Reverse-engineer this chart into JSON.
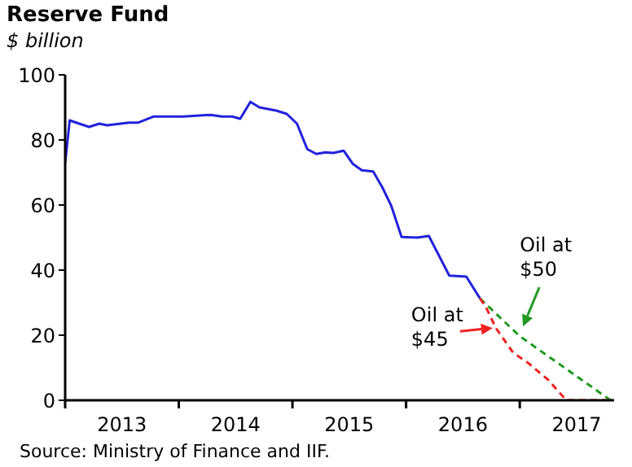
{
  "chart_data": {
    "type": "line",
    "title": "Reserve Fund",
    "subtitle": "$ billion",
    "xlim": [
      2013,
      2017.83
    ],
    "xticks": [
      {
        "value": 2013,
        "label": null
      },
      {
        "value": 2013.5,
        "label": "2013"
      },
      {
        "value": 2014,
        "label": null
      },
      {
        "value": 2014.5,
        "label": "2014"
      },
      {
        "value": 2015,
        "label": null
      },
      {
        "value": 2015.5,
        "label": "2015"
      },
      {
        "value": 2016,
        "label": null
      },
      {
        "value": 2016.5,
        "label": "2016"
      },
      {
        "value": 2017,
        "label": null
      },
      {
        "value": 2017.5,
        "label": "2017"
      }
    ],
    "ylim": [
      0,
      100
    ],
    "yticks": [
      0,
      20,
      40,
      60,
      80,
      100
    ],
    "marker": "none",
    "series": [
      {
        "color": "#2222dd",
        "line_style": "solid",
        "x": [
          2013.0,
          2013.04,
          2013.21,
          2013.3,
          2013.37,
          2013.56,
          2013.64,
          2013.78,
          2014.04,
          2014.28,
          2014.38,
          2014.47,
          2014.54,
          2014.63,
          2014.71,
          2014.86,
          2014.95,
          2015.04,
          2015.13,
          2015.21,
          2015.29,
          2015.36,
          2015.45,
          2015.53,
          2015.61,
          2015.71,
          2015.79,
          2015.87,
          2015.96,
          2016.1,
          2016.2,
          2016.38,
          2016.53,
          2016.65
        ],
        "values": [
          73,
          86,
          84,
          85,
          84.5,
          85.3,
          85.3,
          87.2,
          87.2,
          87.7,
          87.2,
          87.2,
          86.5,
          91.7,
          90,
          89,
          88,
          85,
          77.2,
          75.7,
          76.2,
          76,
          76.7,
          72.7,
          70.7,
          70.3,
          65.5,
          59.7,
          50.2,
          50,
          50.5,
          38.3,
          38,
          31.3
        ]
      },
      {
        "color": "#229922",
        "line_style": "dashed",
        "x": [
          2016.65,
          2017.0,
          2017.8
        ],
        "values": [
          31.3,
          19.7,
          0
        ]
      },
      {
        "color": "#ee2222",
        "line_style": "dashed",
        "x": [
          2016.65,
          2016.7,
          2016.79,
          2016.94,
          2017.08,
          2017.25,
          2017.41,
          2017.8
        ],
        "values": [
          31.3,
          28.8,
          22.2,
          14.7,
          11.3,
          6.3,
          0,
          0
        ]
      }
    ],
    "annotations": [
      {
        "text": "Oil at\n$50",
        "x": 2017.0,
        "y": 19.7
      },
      {
        "text": "Oil at\n$45",
        "x": 2016.79,
        "y": 22.2
      },
      "Source: Ministry of Finance and IIF."
    ]
  }
}
